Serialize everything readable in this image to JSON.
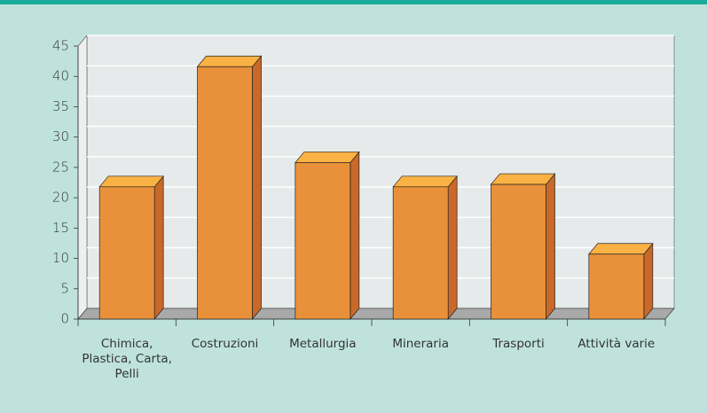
{
  "chart_data": {
    "type": "bar3d",
    "categories": [
      "Chimica, Plastica, Carta, Pelli",
      "Costruzioni",
      "Metallurgia",
      "Mineraria",
      "Trasporti",
      "Attività varie"
    ],
    "values": [
      21.8,
      41.6,
      25.8,
      21.8,
      22.2,
      10.7
    ],
    "colors": {
      "front": "#e8913a",
      "top": "#fbb244",
      "side": "#c8692a"
    },
    "ylim": [
      0,
      45
    ],
    "yticks": [
      0,
      5,
      10,
      15,
      20,
      25,
      30,
      35,
      40,
      45
    ],
    "grid": true
  }
}
